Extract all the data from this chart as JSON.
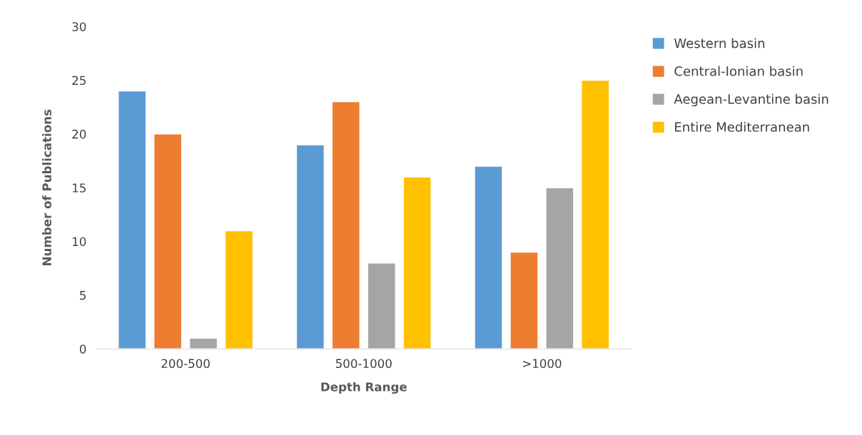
{
  "chart_data": {
    "type": "bar",
    "xlabel": "Depth Range",
    "ylabel": "Number of Publications",
    "categories": [
      "200-500",
      "500-1000",
      ">1000"
    ],
    "series": [
      {
        "name": "Western basin",
        "color": "#5b9bd5",
        "values": [
          24,
          19,
          17
        ]
      },
      {
        "name": "Central-Ionian basin",
        "color": "#ed7d31",
        "values": [
          20,
          23,
          9
        ]
      },
      {
        "name": "Aegean-Levantine basin",
        "color": "#a5a5a5",
        "values": [
          1,
          8,
          15
        ]
      },
      {
        "name": "Entire Mediterranean",
        "color": "#ffc000",
        "values": [
          11,
          16,
          25
        ]
      }
    ],
    "ylim": [
      0,
      30
    ],
    "yticks": [
      0,
      5,
      10,
      15,
      20,
      25,
      30
    ],
    "grid": false,
    "legend": "top right"
  }
}
